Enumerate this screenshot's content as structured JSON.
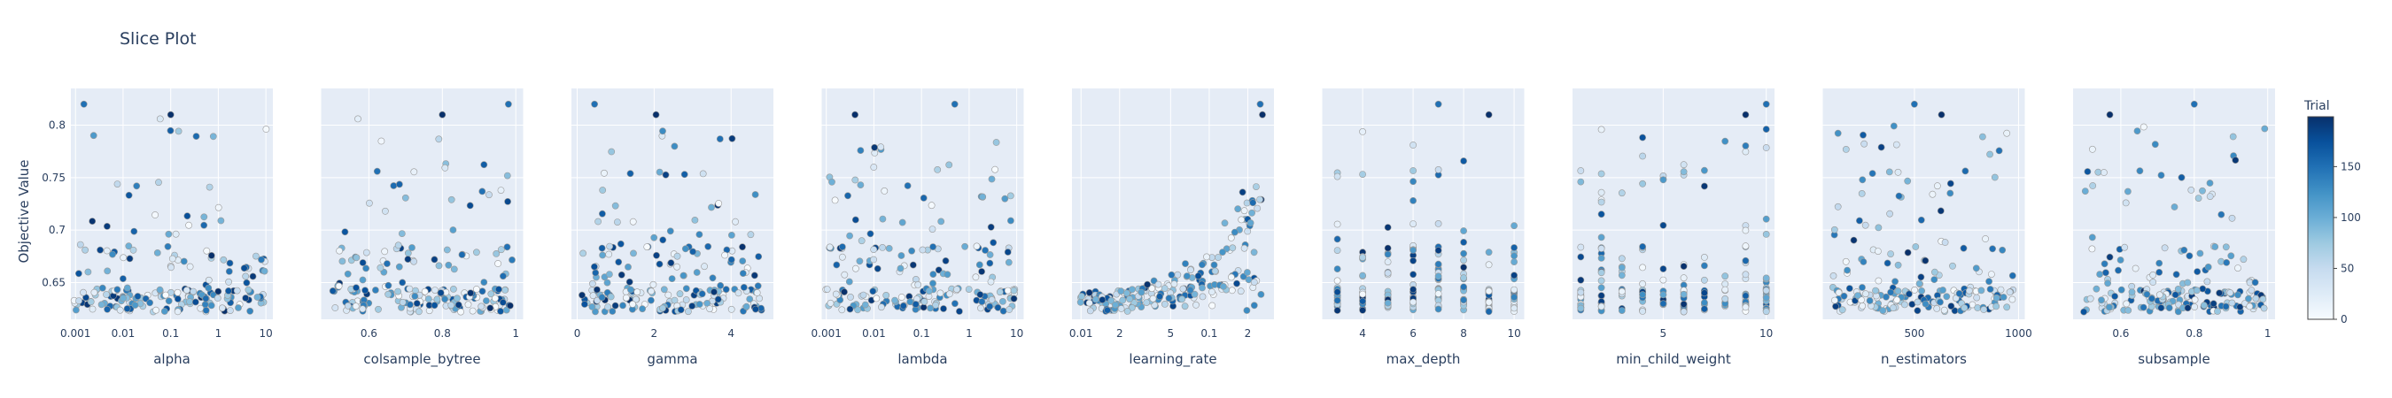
{
  "chart_data": {
    "type": "scatter",
    "title": "Slice Plot",
    "ylabel": "Objective Value",
    "ylim": [
      0.615,
      0.835
    ],
    "yticks": [
      0.65,
      0.7,
      0.75,
      0.8
    ],
    "ytick_labels": [
      "0.65",
      "0.7",
      "0.75",
      "0.8"
    ],
    "colorbar": {
      "title": "Trial",
      "range": [
        0,
        199
      ],
      "ticks": [
        0,
        50,
        100,
        150
      ],
      "colorscale": "Blues"
    },
    "panels": [
      {
        "name": "alpha",
        "xlabel": "alpha",
        "scale": "log",
        "xlim": [
          0.0008,
          14
        ],
        "ticks": [
          0.001,
          0.01,
          0.1,
          1,
          10
        ],
        "tick_labels": [
          "0.001",
          "0.01",
          "0.1",
          "1",
          "10"
        ]
      },
      {
        "name": "colsample_bytree",
        "xlabel": "colsample_bytree",
        "scale": "linear",
        "xlim": [
          0.47,
          1.02
        ],
        "ticks": [
          0.6,
          0.8,
          1
        ],
        "tick_labels": [
          "0.6",
          "0.8",
          "1"
        ]
      },
      {
        "name": "gamma",
        "xlabel": "gamma",
        "scale": "linear",
        "xlim": [
          -0.15,
          5.1
        ],
        "ticks": [
          0,
          2,
          4
        ],
        "tick_labels": [
          "0",
          "2",
          "4"
        ]
      },
      {
        "name": "lambda",
        "xlabel": "lambda",
        "scale": "log",
        "xlim": [
          0.0008,
          14
        ],
        "ticks": [
          0.001,
          0.01,
          0.1,
          1,
          10
        ],
        "tick_labels": [
          "0.001",
          "0.01",
          "0.1",
          "1",
          "10"
        ]
      },
      {
        "name": "learning_rate",
        "xlabel": "learning_rate",
        "scale": "log",
        "xlim": [
          0.0085,
          0.32
        ],
        "ticks": [
          0.01,
          0.02,
          0.05,
          0.1,
          0.2
        ],
        "tick_labels": [
          "0.01",
          "2",
          "5",
          "0.1",
          "2"
        ]
      },
      {
        "name": "max_depth",
        "xlabel": "max_depth",
        "scale": "linear",
        "xlim": [
          2.4,
          10.4
        ],
        "ticks": [
          4,
          6,
          8,
          10
        ],
        "tick_labels": [
          "4",
          "6",
          "8",
          "10"
        ]
      },
      {
        "name": "min_child_weight",
        "xlabel": "min_child_weight",
        "scale": "linear",
        "xlim": [
          0.6,
          10.4
        ],
        "ticks": [
          5,
          10
        ],
        "tick_labels": [
          "5",
          "10"
        ]
      },
      {
        "name": "n_estimators",
        "xlabel": "n_estimators",
        "scale": "linear",
        "xlim": [
          60,
          1030
        ],
        "ticks": [
          500,
          1000
        ],
        "tick_labels": [
          "500",
          "1000"
        ]
      },
      {
        "name": "subsample",
        "xlabel": "subsample",
        "scale": "linear",
        "xlim": [
          0.47,
          1.02
        ],
        "ticks": [
          0.6,
          0.8,
          1
        ],
        "tick_labels": [
          "0.6",
          "0.8",
          "1"
        ]
      }
    ],
    "highlight_points": [
      {
        "panel": "alpha",
        "x": 0.0015,
        "y": 0.82,
        "trial": 150
      },
      {
        "panel": "alpha",
        "x": 0.1,
        "y": 0.81,
        "trial": 199
      },
      {
        "panel": "alpha",
        "x": 0.06,
        "y": 0.806,
        "trial": 30
      },
      {
        "panel": "colsample_bytree",
        "x": 0.57,
        "y": 0.806,
        "trial": 20
      },
      {
        "panel": "colsample_bytree",
        "x": 0.8,
        "y": 0.81,
        "trial": 199
      },
      {
        "panel": "colsample_bytree",
        "x": 0.98,
        "y": 0.82,
        "trial": 150
      },
      {
        "panel": "gamma",
        "x": 0.45,
        "y": 0.82,
        "trial": 150
      },
      {
        "panel": "gamma",
        "x": 2.05,
        "y": 0.81,
        "trial": 199
      },
      {
        "panel": "lambda",
        "x": 0.004,
        "y": 0.81,
        "trial": 199
      },
      {
        "panel": "lambda",
        "x": 0.5,
        "y": 0.82,
        "trial": 150
      },
      {
        "panel": "learning_rate",
        "x": 0.25,
        "y": 0.82,
        "trial": 150
      },
      {
        "panel": "learning_rate",
        "x": 0.26,
        "y": 0.81,
        "trial": 199
      },
      {
        "panel": "max_depth",
        "x": 7,
        "y": 0.82,
        "trial": 150
      },
      {
        "panel": "max_depth",
        "x": 9,
        "y": 0.81,
        "trial": 199
      },
      {
        "panel": "min_child_weight",
        "x": 9,
        "y": 0.81,
        "trial": 199
      },
      {
        "panel": "min_child_weight",
        "x": 10,
        "y": 0.82,
        "trial": 150
      },
      {
        "panel": "n_estimators",
        "x": 630,
        "y": 0.81,
        "trial": 199
      },
      {
        "panel": "n_estimators",
        "x": 500,
        "y": 0.82,
        "trial": 150
      },
      {
        "panel": "subsample",
        "x": 0.57,
        "y": 0.81,
        "trial": 199
      },
      {
        "panel": "subsample",
        "x": 0.8,
        "y": 0.82,
        "trial": 150
      }
    ]
  }
}
